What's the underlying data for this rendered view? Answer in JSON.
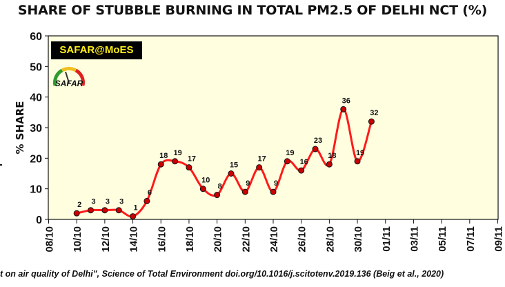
{
  "chart_data": {
    "type": "line",
    "title": "SHARE OF STUBBLE BURNING IN TOTAL PM2.5 OF DELHI NCT (%)",
    "ylabel": "% SHARE",
    "xlabel": "",
    "ylim": [
      0,
      60
    ],
    "yticks": [
      0,
      10,
      20,
      30,
      40,
      50,
      60
    ],
    "xtick_labels": [
      "08/10",
      "10/10",
      "12/10",
      "14/10",
      "16/10",
      "18/10",
      "20/10",
      "22/10",
      "24/10",
      "26/10",
      "28/10",
      "30/10",
      "01/11",
      "03/11",
      "05/11",
      "07/11",
      "09/11"
    ],
    "x": [
      "10/10",
      "11/10",
      "12/10",
      "13/10",
      "14/10",
      "15/10",
      "16/10",
      "17/10",
      "18/10",
      "19/10",
      "20/10",
      "21/10",
      "22/10",
      "23/10",
      "24/10",
      "25/10",
      "26/10",
      "27/10",
      "28/10",
      "29/10",
      "30/10",
      "31/10"
    ],
    "series": [
      {
        "values": [
          2,
          3,
          3,
          3,
          1,
          6,
          18,
          19,
          17,
          10,
          8,
          15,
          9,
          17,
          9,
          19,
          16,
          23,
          18,
          36,
          19,
          32
        ]
      }
    ],
    "data_labels": [
      "2",
      "3",
      "3",
      "3",
      "1",
      "6",
      "18",
      "19",
      "17",
      "10",
      "8",
      "15",
      "9",
      "17",
      "9",
      "19",
      "16",
      "23",
      "18",
      "36",
      "19",
      "32"
    ],
    "grid": false,
    "plot_background": "#ffffe0",
    "line_color": "#ff1a1a",
    "marker_color": "#cc0000"
  },
  "badge_text": "SAFAR@MoES",
  "logo_text": "SAFAR",
  "citation": "t on air quality of Delhi\", Science of Total Environment doi.org/10.1016/j.scitotenv.2019.136 (Beig et al., 2020)"
}
